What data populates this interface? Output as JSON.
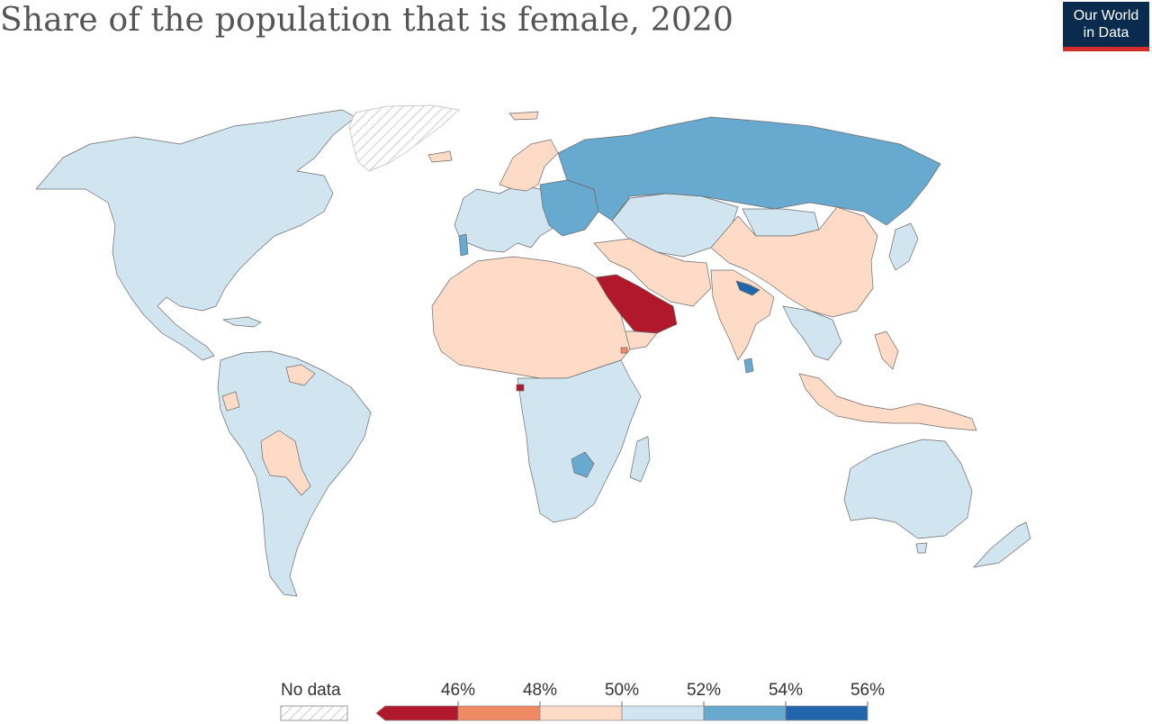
{
  "title": "Share of the population that is female, 2020",
  "logo": {
    "line1": "Our World",
    "line2": "in Data"
  },
  "legend": {
    "no_data_label": "No data",
    "ticks": [
      "46%",
      "48%",
      "50%",
      "52%",
      "54%",
      "56%"
    ],
    "bins": [
      {
        "max": 46,
        "color": "#b2182b"
      },
      {
        "min": 46,
        "max": 48,
        "color": "#ef8a62"
      },
      {
        "min": 48,
        "max": 50,
        "color": "#fddbc7"
      },
      {
        "min": 50,
        "max": 52,
        "color": "#d1e5f0"
      },
      {
        "min": 52,
        "max": 54,
        "color": "#67a9cf"
      },
      {
        "min": 54,
        "max": 56,
        "color": "#2166ac"
      }
    ]
  },
  "colors": {
    "no_data": "#ffffff",
    "border": "#666666"
  }
}
